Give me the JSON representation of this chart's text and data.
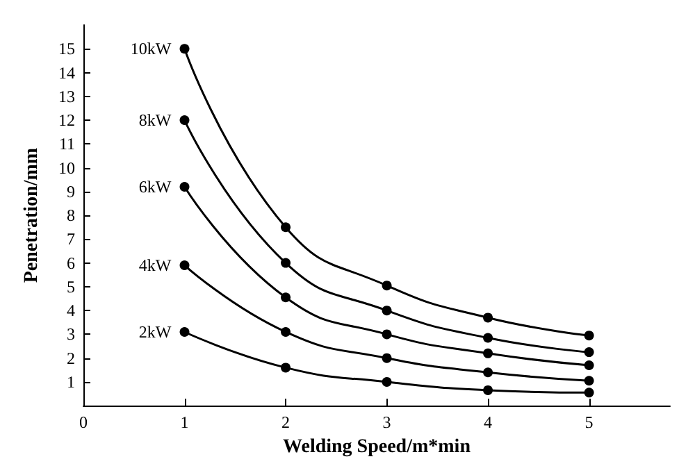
{
  "chart_data": {
    "type": "line",
    "xlabel": "Welding Speed/m*min",
    "ylabel": "Penetration/mm",
    "x": [
      1,
      2,
      3,
      4,
      5
    ],
    "xlim": [
      0,
      5.8
    ],
    "ylim": [
      0,
      16
    ],
    "xticks": [
      0,
      1,
      2,
      3,
      4,
      5
    ],
    "yticks": [
      1,
      2,
      3,
      4,
      5,
      6,
      7,
      8,
      9,
      10,
      11,
      12,
      13,
      14,
      15
    ],
    "grid": false,
    "legend": false,
    "marker": "circle",
    "line_style": "solid",
    "series": [
      {
        "name": "10kW",
        "color": "#000000",
        "values": [
          15,
          7.5,
          5.05,
          3.7,
          2.95
        ]
      },
      {
        "name": "8kW",
        "color": "#000000",
        "values": [
          12,
          6.0,
          4.0,
          2.85,
          2.25
        ]
      },
      {
        "name": "6kW",
        "color": "#000000",
        "values": [
          9.2,
          4.55,
          3.0,
          2.2,
          1.7
        ]
      },
      {
        "name": "4kW",
        "color": "#000000",
        "values": [
          5.9,
          3.1,
          2.0,
          1.4,
          1.05
        ]
      },
      {
        "name": "2kW",
        "color": "#000000",
        "values": [
          3.1,
          1.6,
          1.0,
          0.65,
          0.55
        ]
      }
    ]
  }
}
